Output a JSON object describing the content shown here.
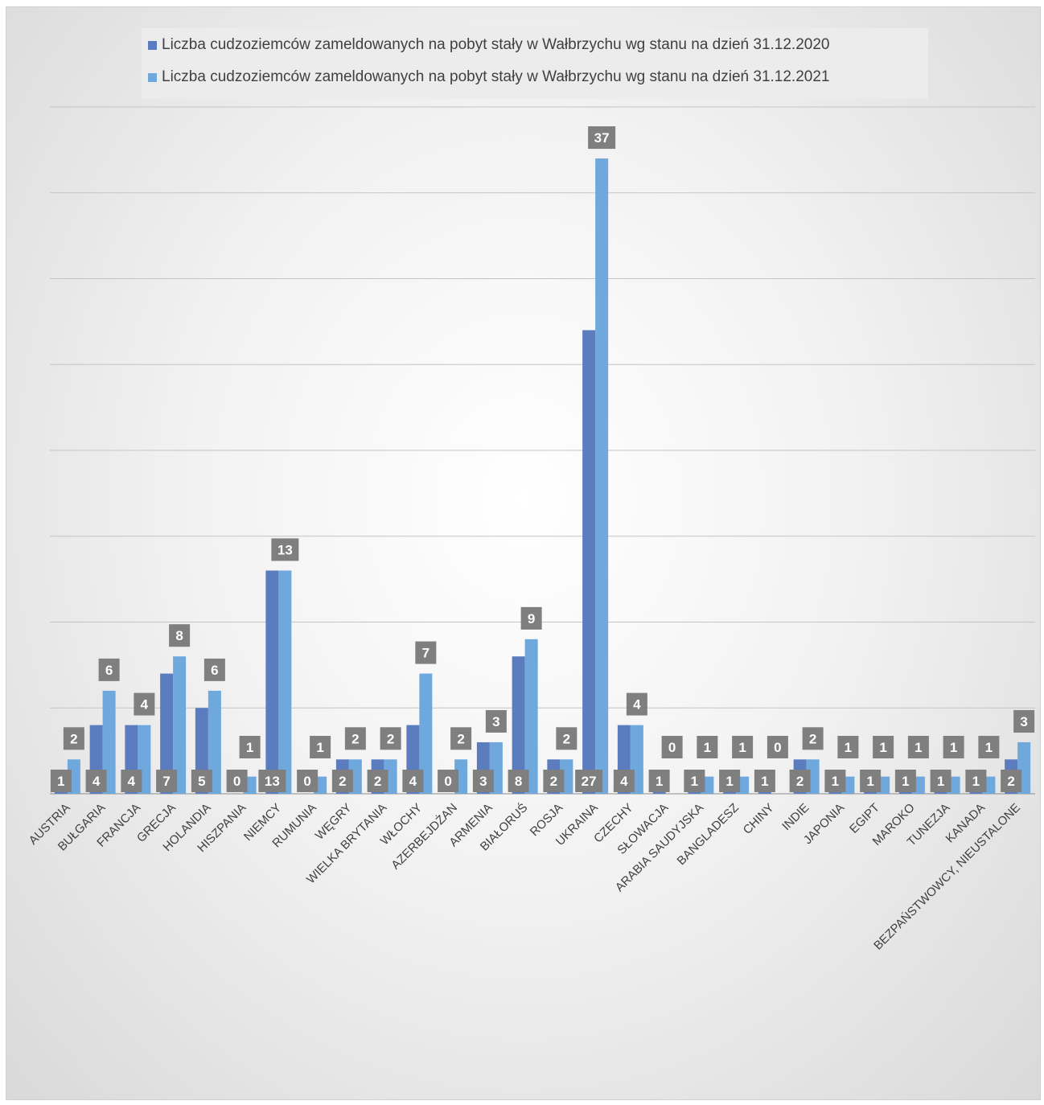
{
  "chart_data": {
    "type": "bar",
    "categories": [
      "AUSTRIA",
      "BUŁGARIA",
      "FRANCJA",
      "GRECJA",
      "HOLANDIA",
      "HISZPANIA",
      "NIEMCY",
      "RUMUNIA",
      "WĘGRY",
      "WIELKA BRYTANIA",
      "WŁOCHY",
      "AZERBEJDŻAN",
      "ARMENIA",
      "BIAŁORUŚ",
      "ROSJA",
      "UKRAINA",
      "CZECHY",
      "SŁOWACJA",
      "ARABIA SAUDYJSKA",
      "BANGLADESZ",
      "CHINY",
      "INDIE",
      "JAPONIA",
      "EGIPT",
      "MAROKO",
      "TUNEZJA",
      "KANADA",
      "BEZPAŃSTWOWCY, NIEUSTALONE"
    ],
    "series": [
      {
        "name": "Liczba cudzoziemców zameldowanych na pobyt stały w Wałbrzychu wg stanu na dzień 31.12.2020",
        "color": "#5B7DBF",
        "values": [
          1,
          4,
          4,
          7,
          5,
          0,
          13,
          0,
          2,
          2,
          4,
          0,
          3,
          8,
          2,
          27,
          4,
          1,
          1,
          1,
          1,
          2,
          1,
          1,
          1,
          1,
          1,
          2
        ]
      },
      {
        "name": "Liczba cudzoziemców zameldowanych na pobyt stały w Wałbrzychu wg stanu na dzień 31.12.2021",
        "color": "#6FA8DC",
        "values": [
          2,
          6,
          4,
          8,
          6,
          1,
          13,
          1,
          2,
          2,
          7,
          2,
          3,
          9,
          2,
          37,
          4,
          0,
          1,
          1,
          0,
          2,
          1,
          1,
          1,
          1,
          1,
          3
        ]
      }
    ],
    "ylim": [
      0,
      40
    ],
    "ytick_step": 5,
    "grid": true,
    "legend_position": "top",
    "label_box_color": "#7F7F7F",
    "label_text_color": "#FFFFFF"
  }
}
